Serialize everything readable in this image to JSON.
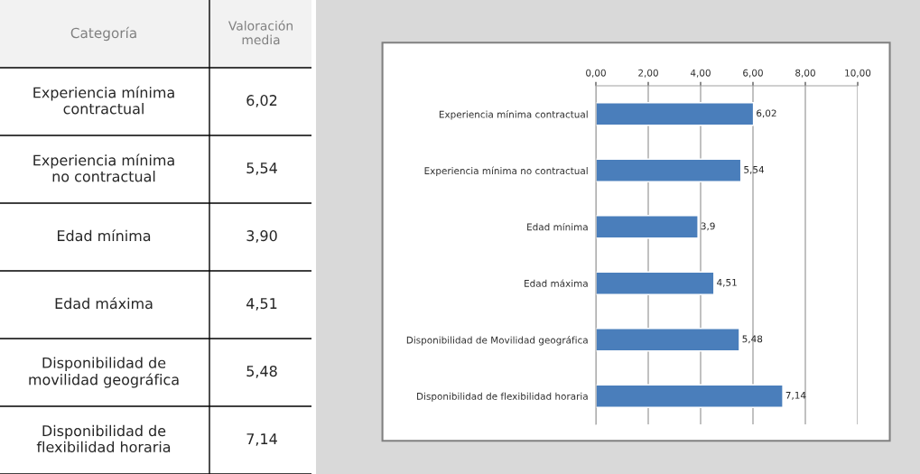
{
  "chart_data": [
    {
      "type": "other",
      "annotations": [
        "Categoría",
        "Valoración media"
      ],
      "categories": [
        "Experiencia mínima\ncontractual",
        "Experiencia mínima\nno contractual",
        "Edad mínima",
        "Edad máxima",
        "Disponibilidad de\nmovilidad geográfica",
        "Disponibilidad de\nflexibilidad horaria"
      ],
      "value_labels": [
        "6,02",
        "5,54",
        "3,90",
        "4,51",
        "5,48",
        "7,14"
      ]
    },
    {
      "type": "bar",
      "orientation": "horizontal",
      "categories": [
        "Experiencia mínima contractual",
        "Experiencia mínima no contractual",
        "Edad mínima",
        "Edad máxima",
        "Disponibilidad de Movilidad geográfica",
        "Disponibilidad de flexibilidad horaria"
      ],
      "values": [
        6.02,
        5.54,
        3.9,
        4.51,
        5.48,
        7.14
      ],
      "value_labels": [
        "6,02",
        "5,54",
        "3,9",
        "4,51",
        "5,48",
        "7,14"
      ],
      "color": "#4a7ebb",
      "xlim": [
        0,
        10
      ],
      "xticks": [
        {
          "value": 0,
          "label": "0,00"
        },
        {
          "value": 2,
          "label": "2,00"
        },
        {
          "value": 4,
          "label": "4,00"
        },
        {
          "value": 6,
          "label": "6,00"
        },
        {
          "value": 8,
          "label": "8,00"
        },
        {
          "value": 10,
          "label": "10,00"
        }
      ],
      "grid": "x"
    }
  ]
}
